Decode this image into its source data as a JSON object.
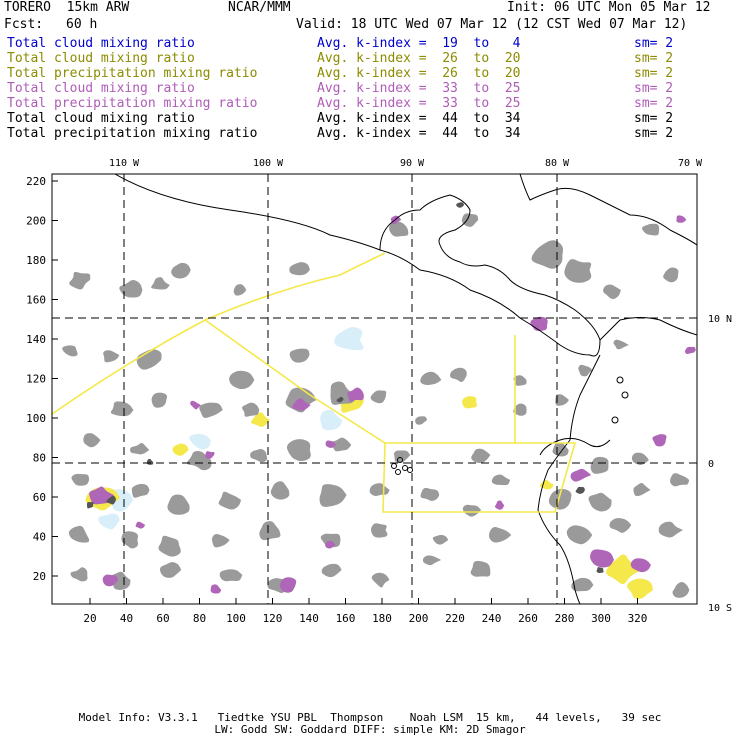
{
  "header": {
    "model": "TORERO  15km ARW",
    "org": "NCAR/MMM",
    "init": "Init: 06 UTC Mon 05 Mar 12",
    "fcst_label": "Fcst:",
    "fcst_value": "60 h",
    "valid": "Valid: 18 UTC Wed 07 Mar 12 (12 CST Wed 07 Mar 12)"
  },
  "legend": [
    {
      "field": "Total cloud mixing ratio",
      "kindex": "Avg. k-index =  19  to   4",
      "sm": "sm= 2",
      "color": "#0000cc"
    },
    {
      "field": "Total cloud mixing ratio",
      "kindex": "Avg. k-index =  26  to  20",
      "sm": "sm= 2",
      "color": "#8c8c00"
    },
    {
      "field": "Total precipitation mixing ratio",
      "kindex": "Avg. k-index =  26  to  20",
      "sm": "sm= 2",
      "color": "#8c8c00"
    },
    {
      "field": "Total cloud mixing ratio",
      "kindex": "Avg. k-index =  33  to  25",
      "sm": "sm= 2",
      "color": "#b05cb8"
    },
    {
      "field": "Total precipitation mixing ratio",
      "kindex": "Avg. k-index =  33  to  25",
      "sm": "sm= 2",
      "color": "#b05cb8"
    },
    {
      "field": "Total cloud mixing ratio",
      "kindex": "Avg. k-index =  44  to  34",
      "sm": "sm= 2",
      "color": "#000000"
    },
    {
      "field": "Total precipitation mixing ratio",
      "kindex": "Avg. k-index =  44  to  34",
      "sm": "sm= 2",
      "color": "#000000"
    }
  ],
  "map": {
    "lon_labels": [
      "110 W",
      "100 W",
      "90 W",
      "80 W",
      "70 W"
    ],
    "lat_labels": [
      "10 N",
      "0",
      "10 S"
    ],
    "grid_x_labels": [
      "20",
      "40",
      "60",
      "80",
      "100",
      "120",
      "140",
      "160",
      "180",
      "200",
      "220",
      "240",
      "260",
      "280",
      "300",
      "320"
    ],
    "grid_y_labels": [
      "220",
      "200",
      "180",
      "160",
      "140",
      "120",
      "100",
      "80",
      "60",
      "40",
      "20"
    ],
    "colors": {
      "cloud_gray": "#9a9a9a",
      "dense_gray": "#555555",
      "purple": "#b066b8",
      "yellow": "#f5e84a",
      "light_blue": "#d8eef8",
      "coast": "#000000",
      "boundary_yellow": "#f5e84a"
    }
  },
  "footer": {
    "line1": "Model Info: V3.3.1   Tiedtke YSU PBL  Thompson    Noah LSM  15 km,   44 levels,   39 sec",
    "line2": "LW: Godd SW: Goddard DIFF: simple KM: 2D Smagor"
  }
}
